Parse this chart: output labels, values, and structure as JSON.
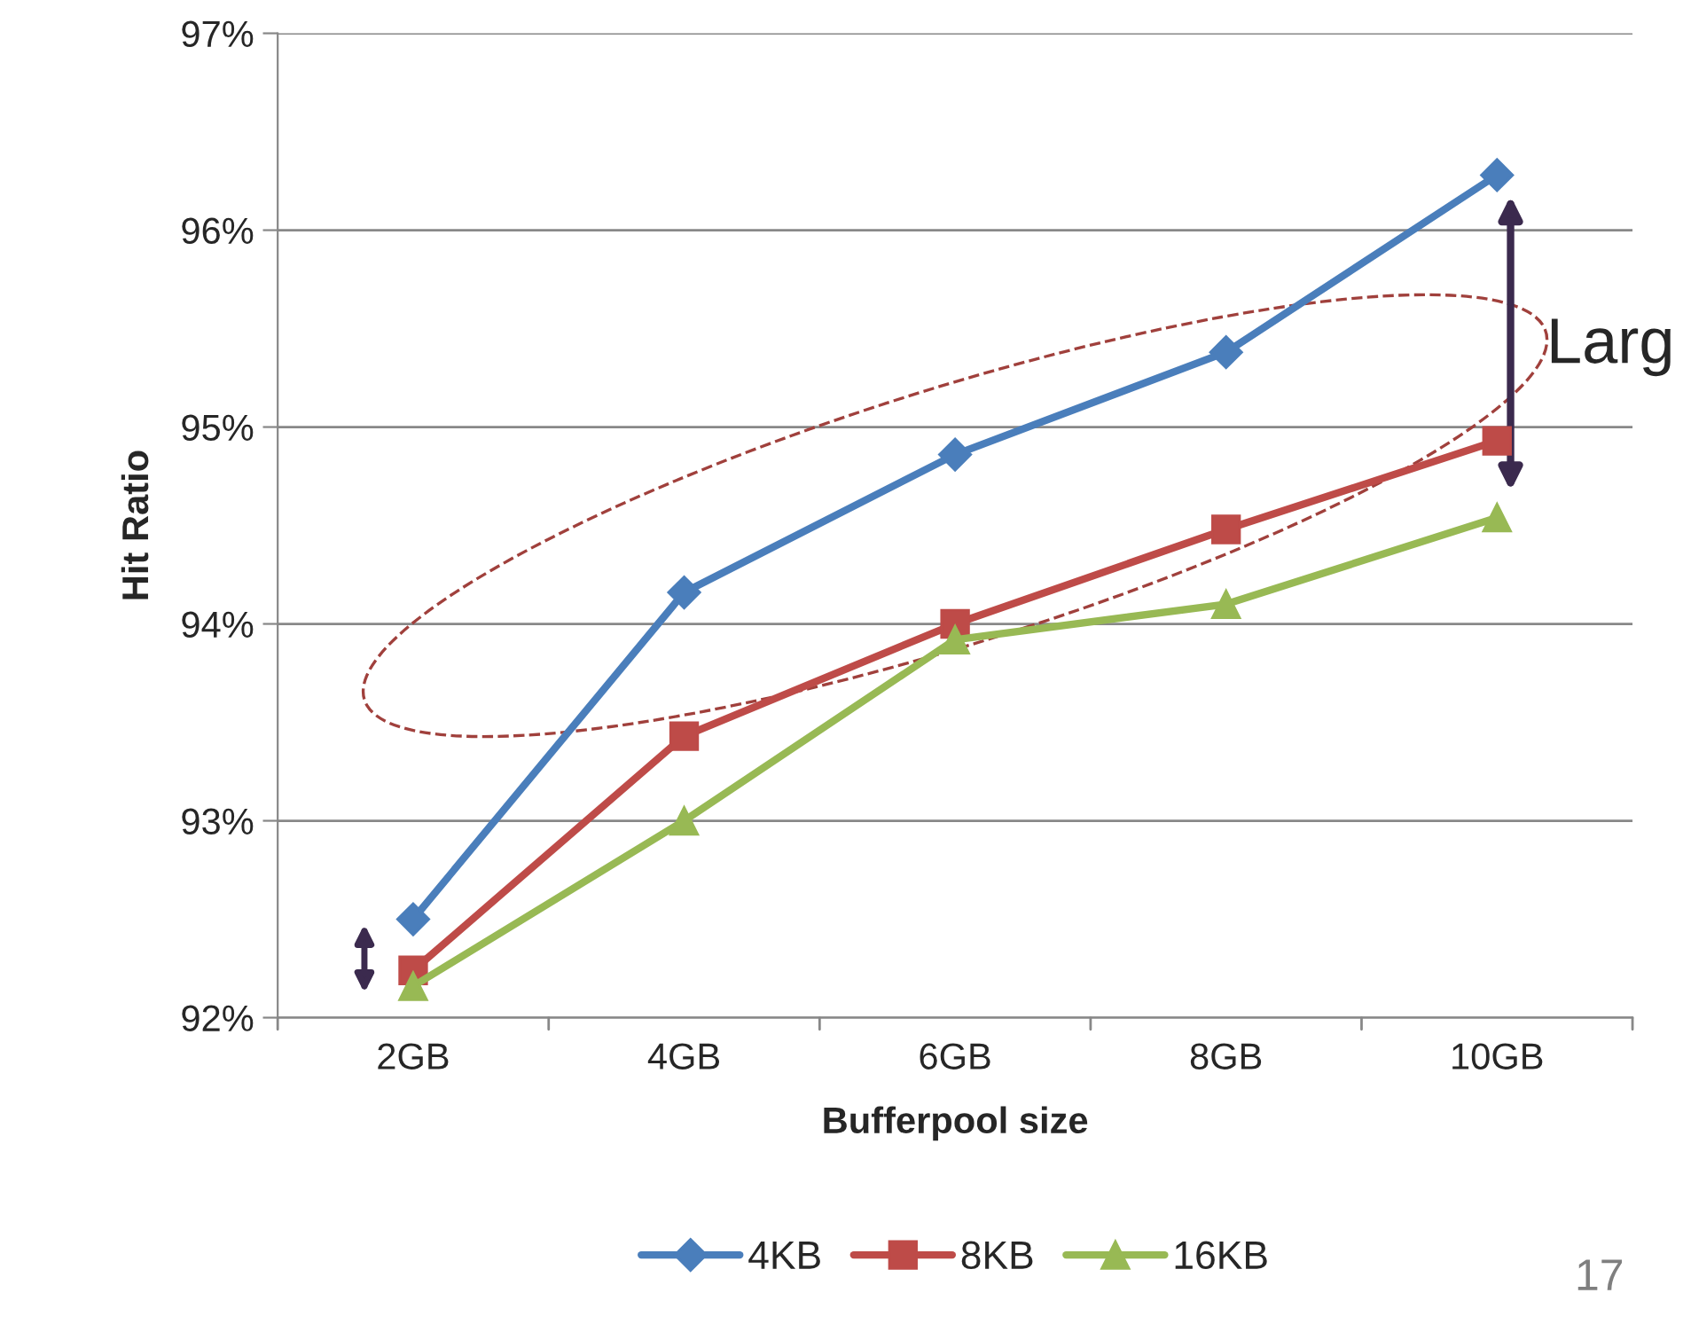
{
  "chart_data": {
    "type": "line",
    "xlabel": "Bufferpool size",
    "ylabel": "Hit Ratio",
    "categories": [
      "2GB",
      "4GB",
      "6GB",
      "8GB",
      "10GB"
    ],
    "series": [
      {
        "name": "4KB",
        "color": "#4a7ebb",
        "marker": "diamond",
        "values": [
          92.5,
          94.16,
          94.86,
          95.38,
          96.28
        ]
      },
      {
        "name": "8KB",
        "color": "#be4b48",
        "marker": "square",
        "values": [
          92.24,
          93.43,
          94.0,
          94.48,
          94.93
        ]
      },
      {
        "name": "16KB",
        "color": "#98b954",
        "marker": "triangle",
        "values": [
          92.16,
          93.0,
          93.92,
          94.1,
          94.54
        ]
      }
    ],
    "ylim": [
      92,
      97
    ],
    "yticks": [
      {
        "value": 92,
        "label": "92%"
      },
      {
        "value": 93,
        "label": "93%"
      },
      {
        "value": 94,
        "label": "94%"
      },
      {
        "value": 95,
        "label": "95%"
      },
      {
        "value": 96,
        "label": "96%"
      },
      {
        "value": 97,
        "label": "97%"
      }
    ],
    "grid": "y",
    "legend": "bottom",
    "line_style": "solid",
    "annotations": [
      "Larg",
      "17"
    ]
  }
}
